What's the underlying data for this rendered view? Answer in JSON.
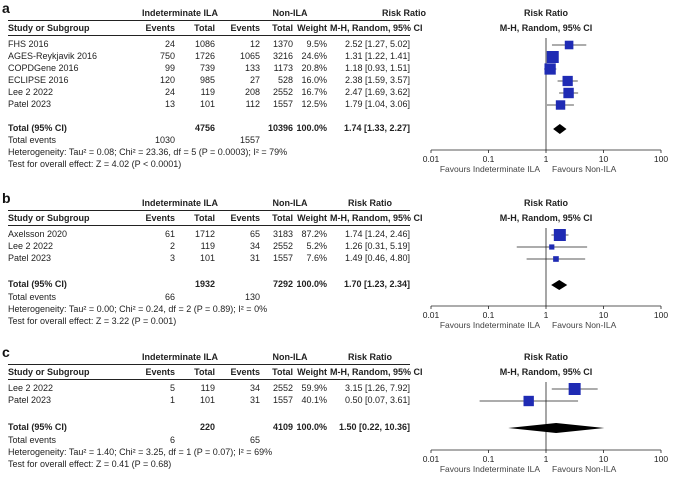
{
  "headers": {
    "study": "Study or Subgroup",
    "group1": "Indeterminate ILA",
    "group2": "Non-ILA",
    "events": "Events",
    "total": "Total",
    "weight": "Weight",
    "rr": "Risk Ratio",
    "method": "M-H, Random, 95% CI"
  },
  "colors": {
    "box": "#1f2bb4",
    "line": "#222222"
  },
  "panels": [
    {
      "label": "a",
      "rows": [
        {
          "study": "FHS 2016",
          "e1": "24",
          "t1": "1086",
          "e2": "12",
          "t2": "1370",
          "weight": "9.5%",
          "ci": "2.52 [1.27, 5.02]"
        },
        {
          "study": "AGES-Reykjavik 2016",
          "e1": "750",
          "t1": "1726",
          "e2": "1065",
          "t2": "3216",
          "weight": "24.6%",
          "ci": "1.31 [1.22, 1.41]"
        },
        {
          "study": "COPDGene 2016",
          "e1": "99",
          "t1": "739",
          "e2": "133",
          "t2": "1173",
          "weight": "20.8%",
          "ci": "1.18 [0.93, 1.51]"
        },
        {
          "study": "ECLIPSE 2016",
          "e1": "120",
          "t1": "985",
          "e2": "27",
          "t2": "528",
          "weight": "16.0%",
          "ci": "2.38 [1.59, 3.57]"
        },
        {
          "study": "Lee 2 2022",
          "e1": "24",
          "t1": "119",
          "e2": "208",
          "t2": "2552",
          "weight": "16.7%",
          "ci": "2.47 [1.69, 3.62]"
        },
        {
          "study": "Patel 2023",
          "e1": "13",
          "t1": "101",
          "e2": "112",
          "t2": "1557",
          "weight": "12.5%",
          "ci": "1.79 [1.04, 3.06]"
        }
      ],
      "total": {
        "label": "Total (95% CI)",
        "t1": "4756",
        "t2": "10396",
        "weight": "100.0%",
        "ci": "1.74 [1.33, 2.27]"
      },
      "events": {
        "label": "Total events",
        "e1": "1030",
        "e2": "1557"
      },
      "heterogeneity": "Heterogeneity: Tau² = 0.08; Chi² = 23.36, df = 5 (P = 0.0003); I² = 79%",
      "overall": "Test for overall effect: Z = 4.02 (P < 0.0001)"
    },
    {
      "label": "b",
      "rows": [
        {
          "study": "Axelsson 2020",
          "e1": "61",
          "t1": "1712",
          "e2": "65",
          "t2": "3183",
          "weight": "87.2%",
          "ci": "1.74 [1.24, 2.46]"
        },
        {
          "study": "Lee 2 2022",
          "e1": "2",
          "t1": "119",
          "e2": "34",
          "t2": "2552",
          "weight": "5.2%",
          "ci": "1.26 [0.31, 5.19]"
        },
        {
          "study": "Patel 2023",
          "e1": "3",
          "t1": "101",
          "e2": "31",
          "t2": "1557",
          "weight": "7.6%",
          "ci": "1.49 [0.46, 4.80]"
        }
      ],
      "total": {
        "label": "Total (95% CI)",
        "t1": "1932",
        "t2": "7292",
        "weight": "100.0%",
        "ci": "1.70 [1.23, 2.34]"
      },
      "events": {
        "label": "Total events",
        "e1": "66",
        "e2": "130"
      },
      "heterogeneity": "Heterogeneity: Tau² = 0.00; Chi² = 0.24, df = 2 (P = 0.89); I² = 0%",
      "overall": "Test for overall effect: Z = 3.22 (P = 0.001)"
    },
    {
      "label": "c",
      "rows": [
        {
          "study": "Lee 2 2022",
          "e1": "5",
          "t1": "119",
          "e2": "34",
          "t2": "2552",
          "weight": "59.9%",
          "ci": "3.15 [1.26, 7.92]"
        },
        {
          "study": "Patel 2023",
          "e1": "1",
          "t1": "101",
          "e2": "31",
          "t2": "1557",
          "weight": "40.1%",
          "ci": "0.50 [0.07, 3.61]"
        }
      ],
      "total": {
        "label": "Total (95% CI)",
        "t1": "220",
        "t2": "4109",
        "weight": "100.0%",
        "ci": "1.50 [0.22, 10.36]"
      },
      "events": {
        "label": "Total events",
        "e1": "6",
        "e2": "65"
      },
      "heterogeneity": "Heterogeneity: Tau² = 1.40; Chi² = 3.25, df = 1 (P = 0.07); I² = 69%",
      "overall": "Test for overall effect: Z = 0.41 (P = 0.68)"
    }
  ],
  "chart_data": [
    {
      "type": "forest",
      "title": "Risk Ratio",
      "subtitle": "M-H, Random, 95% CI",
      "x_scale": "log",
      "xlim": [
        0.01,
        100
      ],
      "ticks": [
        "0.01",
        "0.1",
        "1",
        "10",
        "100"
      ],
      "tick_values": [
        0.01,
        0.1,
        1,
        10,
        100
      ],
      "favours_left": "Favours Indeterminate ILA",
      "favours_right": "Favours Non-ILA",
      "studies": [
        {
          "name": "FHS 2016",
          "rr": 2.52,
          "lo": 1.27,
          "hi": 5.02,
          "weight": 9.5
        },
        {
          "name": "AGES-Reykjavik 2016",
          "rr": 1.31,
          "lo": 1.22,
          "hi": 1.41,
          "weight": 24.6
        },
        {
          "name": "COPDGene 2016",
          "rr": 1.18,
          "lo": 0.93,
          "hi": 1.51,
          "weight": 20.8
        },
        {
          "name": "ECLIPSE 2016",
          "rr": 2.38,
          "lo": 1.59,
          "hi": 3.57,
          "weight": 16.0
        },
        {
          "name": "Lee 2 2022",
          "rr": 2.47,
          "lo": 1.69,
          "hi": 3.62,
          "weight": 16.7
        },
        {
          "name": "Patel 2023",
          "rr": 1.79,
          "lo": 1.04,
          "hi": 3.06,
          "weight": 12.5
        }
      ],
      "pooled": {
        "rr": 1.74,
        "lo": 1.33,
        "hi": 2.27
      }
    },
    {
      "type": "forest",
      "title": "Risk Ratio",
      "subtitle": "M-H, Random, 95% CI",
      "x_scale": "log",
      "xlim": [
        0.01,
        100
      ],
      "ticks": [
        "0.01",
        "0.1",
        "1",
        "10",
        "100"
      ],
      "tick_values": [
        0.01,
        0.1,
        1,
        10,
        100
      ],
      "favours_left": "Favours Indeterminate ILA",
      "favours_right": "Favours Non-ILA",
      "studies": [
        {
          "name": "Axelsson 2020",
          "rr": 1.74,
          "lo": 1.24,
          "hi": 2.46,
          "weight": 87.2
        },
        {
          "name": "Lee 2 2022",
          "rr": 1.26,
          "lo": 0.31,
          "hi": 5.19,
          "weight": 5.2
        },
        {
          "name": "Patel 2023",
          "rr": 1.49,
          "lo": 0.46,
          "hi": 4.8,
          "weight": 7.6
        }
      ],
      "pooled": {
        "rr": 1.7,
        "lo": 1.23,
        "hi": 2.34
      }
    },
    {
      "type": "forest",
      "title": "Risk Ratio",
      "subtitle": "M-H, Random, 95% CI",
      "x_scale": "log",
      "xlim": [
        0.01,
        100
      ],
      "ticks": [
        "0.01",
        "0.1",
        "1",
        "10",
        "100"
      ],
      "tick_values": [
        0.01,
        0.1,
        1,
        10,
        100
      ],
      "favours_left": "Favours Indeterminate ILA",
      "favours_right": "Favours Non-ILA",
      "studies": [
        {
          "name": "Lee 2 2022",
          "rr": 3.15,
          "lo": 1.26,
          "hi": 7.92,
          "weight": 59.9
        },
        {
          "name": "Patel 2023",
          "rr": 0.5,
          "lo": 0.07,
          "hi": 3.61,
          "weight": 40.1
        }
      ],
      "pooled": {
        "rr": 1.5,
        "lo": 0.22,
        "hi": 10.36
      }
    }
  ]
}
